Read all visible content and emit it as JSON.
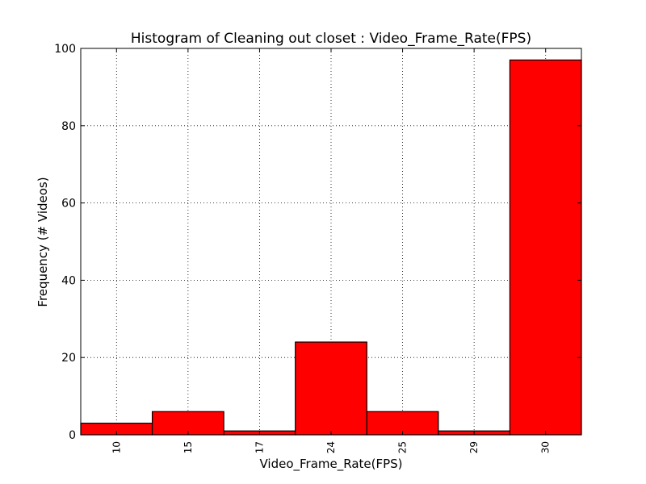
{
  "chart_data": {
    "type": "bar",
    "title": "Histogram of Cleaning out closet : Video_Frame_Rate(FPS)",
    "xlabel": "Video_Frame_Rate(FPS)",
    "ylabel": "Frequency (# Videos)",
    "categories": [
      "10",
      "15",
      "17",
      "24",
      "25",
      "29",
      "30"
    ],
    "values": [
      3,
      6,
      1,
      24,
      6,
      1,
      97
    ],
    "ylim": [
      0,
      100
    ],
    "yticks": [
      "0",
      "20",
      "40",
      "60",
      "80",
      "100"
    ],
    "grid": true,
    "bar_color": "#ff0000",
    "edge_color": "#000000"
  }
}
